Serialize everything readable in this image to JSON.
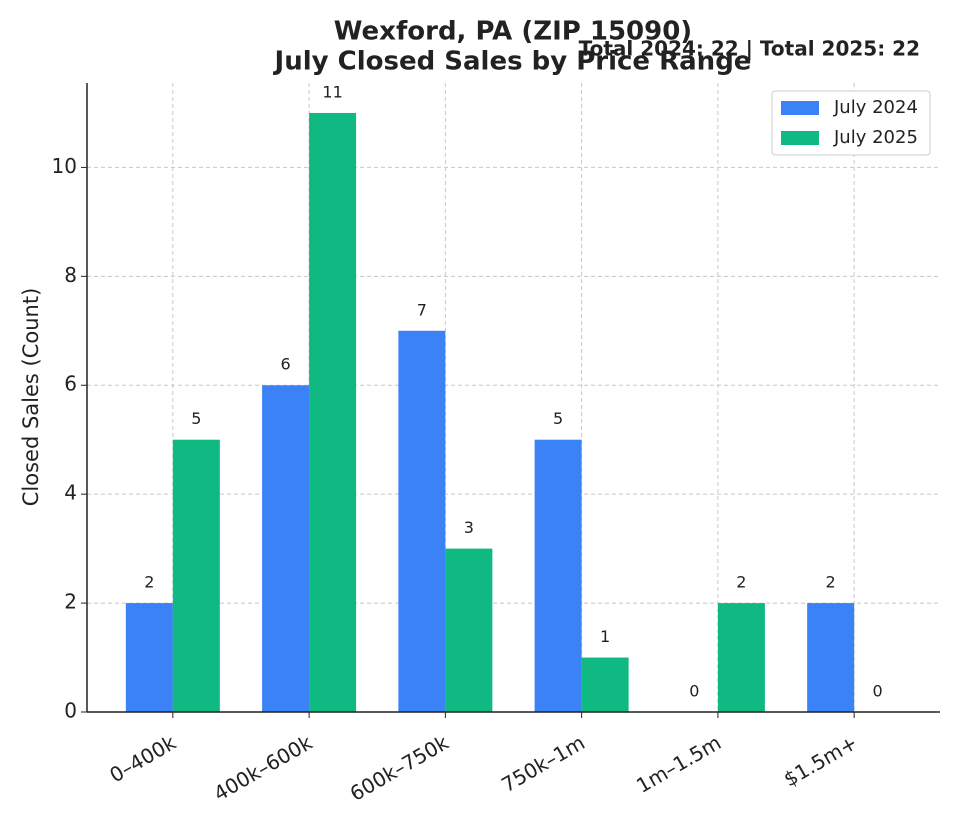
{
  "chart_data": {
    "type": "bar",
    "title": "Wexford, PA (ZIP 15090)",
    "subtitle": "July Closed Sales by Price Range",
    "annotation": "Total 2024: 22 | Total 2025: 22",
    "y_label": "Closed Sales (Count)",
    "categories": [
      "0–400k",
      "400k–600k",
      "600k–750k",
      "750k–1m",
      "1m–1.5m",
      "$1.5m+"
    ],
    "series": [
      {
        "name": "July 2024",
        "color": "#3b82f6",
        "values": [
          2,
          6,
          7,
          5,
          0,
          2
        ]
      },
      {
        "name": "July 2025",
        "color": "#10b981",
        "values": [
          5,
          11,
          3,
          1,
          2,
          0
        ]
      }
    ],
    "ylim": [
      0,
      11.55
    ],
    "yticks": [
      0,
      2,
      4,
      6,
      8,
      10
    ],
    "grid": true,
    "legend": "upper right"
  }
}
